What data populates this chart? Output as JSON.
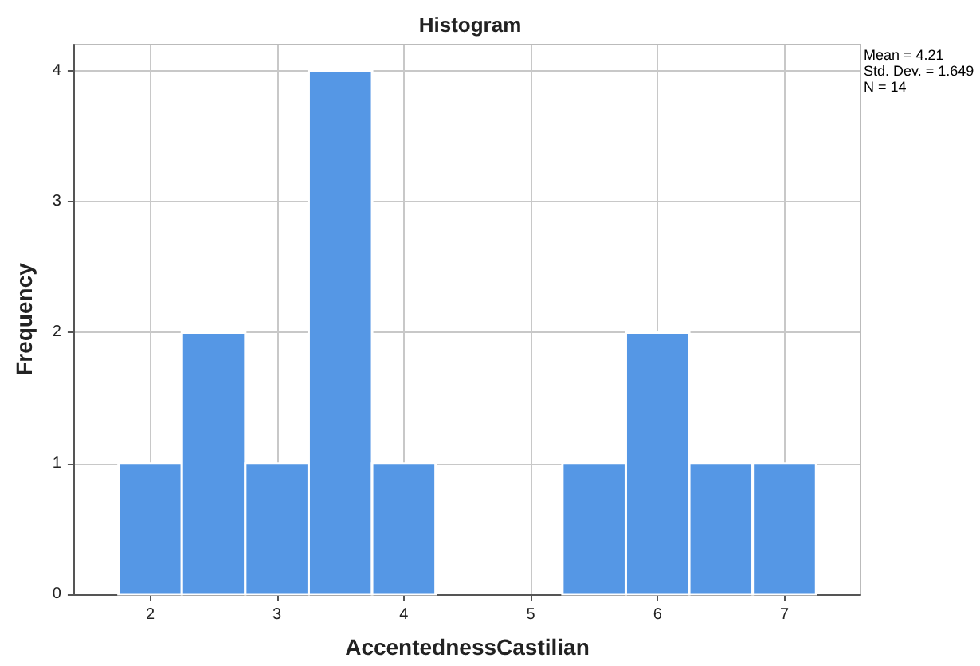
{
  "chart_data": {
    "type": "histogram",
    "title": "Histogram",
    "xlabel": "AccentednessCastilian",
    "ylabel": "Frequency",
    "bins": [
      1.75,
      2.25,
      2.75,
      3.25,
      3.75,
      4.25,
      4.75,
      5.25,
      5.75,
      6.25,
      6.75,
      7.25
    ],
    "values": [
      1,
      2,
      1,
      4,
      1,
      0,
      0,
      1,
      2,
      1,
      1
    ],
    "color": "#5597e5",
    "xlim": [
      1.4,
      7.6
    ],
    "xticks": [
      2,
      3,
      4,
      5,
      6,
      7
    ],
    "ylim": [
      0,
      4.2
    ],
    "yticks": [
      0,
      1,
      2,
      3,
      4
    ],
    "grid": true,
    "annotations": [
      "Mean = 4.21",
      "Std. Dev. = 1.649",
      "N = 14"
    ]
  }
}
